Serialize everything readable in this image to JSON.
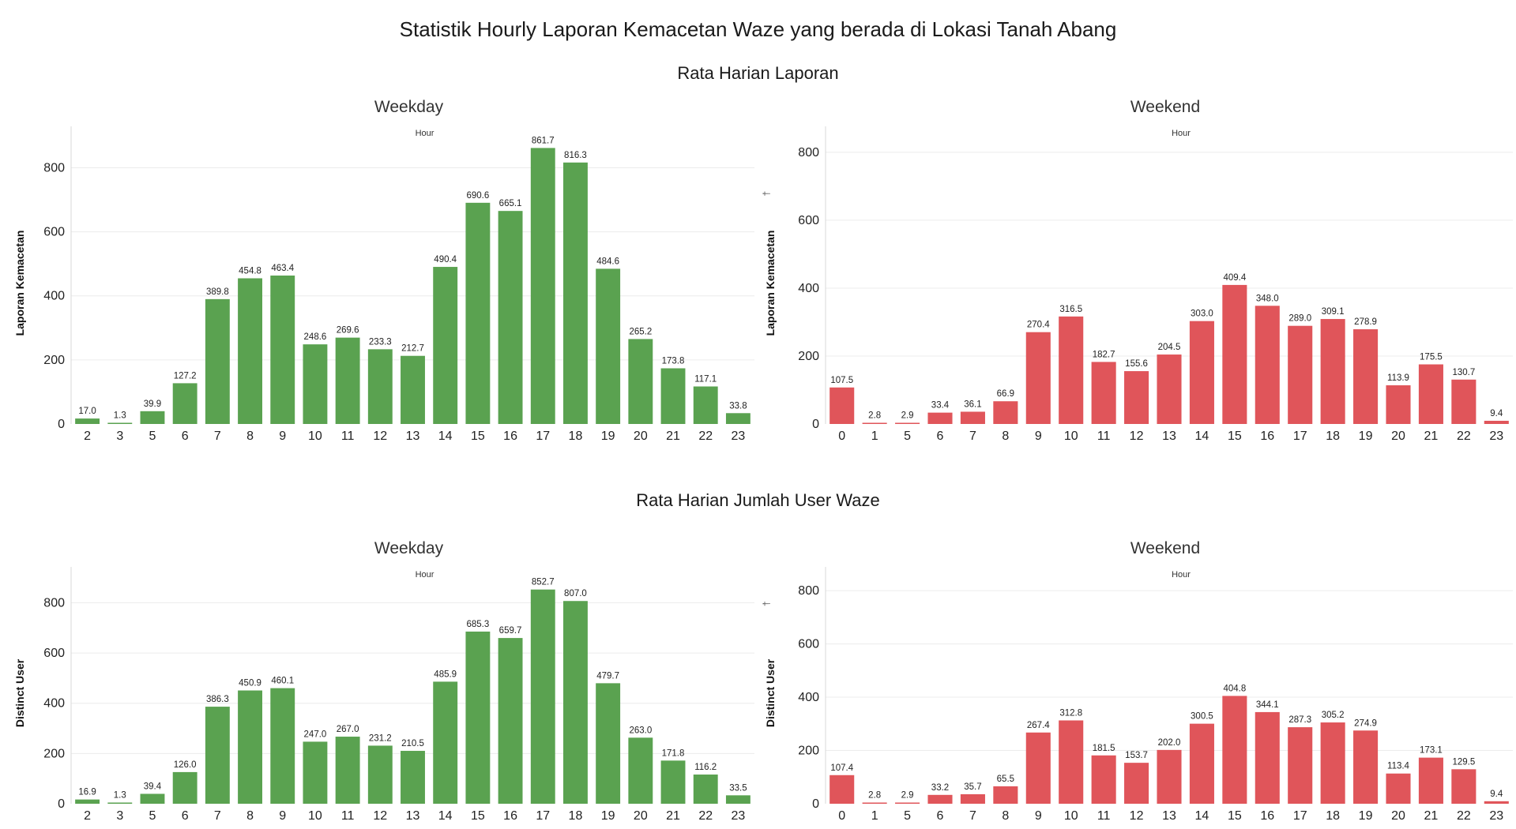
{
  "title": "Statistik Hourly Laporan Kemacetan Waze yang berada di Lokasi Tanah Abang",
  "sections": [
    {
      "title": "Rata Harian Laporan"
    },
    {
      "title": "Rata Harian Jumlah User Waze"
    }
  ],
  "chart_data": [
    {
      "type": "bar",
      "title": "Weekday",
      "xlabel": "Hour",
      "ylabel": "Laporan Kemacetan",
      "color": "#5aa250",
      "ylim": [
        0,
        880
      ],
      "yticks": [
        0,
        200,
        400,
        600,
        800
      ],
      "grid": true,
      "categories": [
        "2",
        "3",
        "5",
        "6",
        "7",
        "8",
        "9",
        "10",
        "11",
        "12",
        "13",
        "14",
        "15",
        "16",
        "17",
        "18",
        "19",
        "20",
        "21",
        "22",
        "23"
      ],
      "values": [
        17.0,
        1.3,
        39.9,
        127.2,
        389.8,
        454.8,
        463.4,
        248.6,
        269.6,
        233.3,
        212.7,
        490.4,
        690.6,
        665.1,
        861.7,
        816.3,
        484.6,
        265.2,
        173.8,
        117.1,
        33.8
      ],
      "labels": [
        "17.0",
        "1.3",
        "39.9",
        "127.2",
        "389.8",
        "454.8",
        "463.4",
        "248.6",
        "269.6",
        "233.3",
        "212.7",
        "490.4",
        "690.6",
        "665.1",
        "861.7",
        "816.3",
        "484.6",
        "265.2",
        "173.8",
        "117.1",
        "33.8"
      ]
    },
    {
      "type": "bar",
      "title": "Weekend",
      "xlabel": "Hour",
      "ylabel": "Laporan Kemacetan",
      "color": "#e0555a",
      "ylim": [
        0,
        830
      ],
      "yticks": [
        0,
        200,
        400,
        600,
        800
      ],
      "grid": true,
      "categories": [
        "0",
        "1",
        "5",
        "6",
        "7",
        "8",
        "9",
        "10",
        "11",
        "12",
        "13",
        "14",
        "15",
        "16",
        "17",
        "18",
        "19",
        "20",
        "21",
        "22",
        "23"
      ],
      "values": [
        107.5,
        2.8,
        2.9,
        33.4,
        36.1,
        66.9,
        270.4,
        316.5,
        182.7,
        155.6,
        204.5,
        303.0,
        409.4,
        348.0,
        289.0,
        309.1,
        278.9,
        113.9,
        175.5,
        130.7,
        9.4
      ],
      "labels": [
        "107.5",
        "2.8",
        "2.9",
        "33.4",
        "36.1",
        "66.9",
        "270.4",
        "316.5",
        "182.7",
        "155.6",
        "204.5",
        "303.0",
        "409.4",
        "348.0",
        "289.0",
        "309.1",
        "278.9",
        "113.9",
        "175.5",
        "130.7",
        "9.4"
      ]
    },
    {
      "type": "bar",
      "title": "Weekday",
      "xlabel": "Hour",
      "ylabel": "Distinct User",
      "color": "#5aa250",
      "ylim": [
        0,
        880
      ],
      "yticks": [
        0,
        200,
        400,
        600,
        800
      ],
      "grid": true,
      "categories": [
        "2",
        "3",
        "5",
        "6",
        "7",
        "8",
        "9",
        "10",
        "11",
        "12",
        "13",
        "14",
        "15",
        "16",
        "17",
        "18",
        "19",
        "20",
        "21",
        "22",
        "23"
      ],
      "values": [
        16.9,
        1.3,
        39.4,
        126.0,
        386.3,
        450.9,
        460.1,
        247.0,
        267.0,
        231.2,
        210.5,
        485.9,
        685.3,
        659.7,
        852.7,
        807.0,
        479.7,
        263.0,
        171.8,
        116.2,
        33.5
      ],
      "labels": [
        "16.9",
        "1.3",
        "39.4",
        "126.0",
        "386.3",
        "450.9",
        "460.1",
        "247.0",
        "267.0",
        "231.2",
        "210.5",
        "485.9",
        "685.3",
        "659.7",
        "852.7",
        "807.0",
        "479.7",
        "263.0",
        "171.8",
        "116.2",
        "33.5"
      ]
    },
    {
      "type": "bar",
      "title": "Weekend",
      "xlabel": "Hour",
      "ylabel": "Distinct User",
      "color": "#e0555a",
      "ylim": [
        0,
        830
      ],
      "yticks": [
        0,
        200,
        400,
        600,
        800
      ],
      "grid": true,
      "categories": [
        "0",
        "1",
        "5",
        "6",
        "7",
        "8",
        "9",
        "10",
        "11",
        "12",
        "13",
        "14",
        "15",
        "16",
        "17",
        "18",
        "19",
        "20",
        "21",
        "22",
        "23"
      ],
      "values": [
        107.4,
        2.8,
        2.9,
        33.2,
        35.7,
        65.5,
        267.4,
        312.8,
        181.5,
        153.7,
        202.0,
        300.5,
        404.8,
        344.1,
        287.3,
        305.2,
        274.9,
        113.4,
        173.1,
        129.5,
        9.4
      ],
      "labels": [
        "107.4",
        "2.8",
        "2.9",
        "33.2",
        "35.7",
        "65.5",
        "267.4",
        "312.8",
        "181.5",
        "153.7",
        "202.0",
        "300.5",
        "404.8",
        "344.1",
        "287.3",
        "305.2",
        "274.9",
        "113.4",
        "173.1",
        "129.5",
        "9.4"
      ]
    }
  ]
}
